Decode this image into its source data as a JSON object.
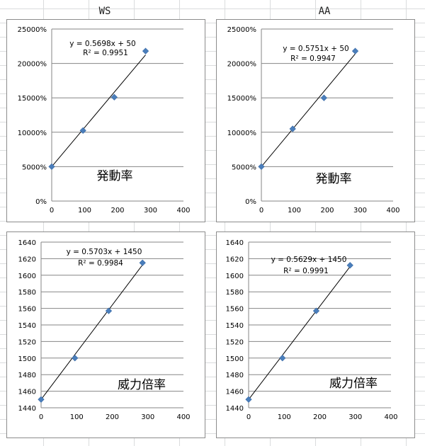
{
  "headers": {
    "left": "WS",
    "right": "AA"
  },
  "colors": {
    "marker": "#4a7ebb",
    "grid": "#868686",
    "line": "#000000"
  },
  "chart_data": [
    {
      "type": "scatter",
      "title": "",
      "annotation": "発動率",
      "equation": "y = 0.5698x + 50",
      "r2": "R² = 0.9951",
      "x": [
        0,
        95,
        190,
        285
      ],
      "y": [
        5000,
        10250,
        15100,
        21800
      ],
      "trend": {
        "slope": 56.98,
        "intercept": 5000
      },
      "xlim": [
        0,
        400
      ],
      "ylim": [
        0,
        25000
      ],
      "xticks": [
        0,
        100,
        200,
        300,
        400
      ],
      "yticks": [
        0,
        5000,
        10000,
        15000,
        20000,
        25000
      ],
      "ytick_labels": [
        "0%",
        "5000%",
        "10000%",
        "15000%",
        "20000%",
        "25000%"
      ],
      "grid": "horizontal",
      "legend": "none"
    },
    {
      "type": "scatter",
      "title": "",
      "annotation": "発動率",
      "equation": "y = 0.5751x + 50",
      "r2": "R² = 0.9947",
      "x": [
        0,
        95,
        190,
        285
      ],
      "y": [
        5000,
        10500,
        15000,
        21800
      ],
      "trend": {
        "slope": 57.51,
        "intercept": 5000
      },
      "xlim": [
        0,
        400
      ],
      "ylim": [
        0,
        25000
      ],
      "xticks": [
        0,
        100,
        200,
        300,
        400
      ],
      "yticks": [
        0,
        5000,
        10000,
        15000,
        20000,
        25000
      ],
      "ytick_labels": [
        "0%",
        "5000%",
        "10000%",
        "15000%",
        "20000%",
        "25000%"
      ],
      "grid": "horizontal",
      "legend": "none"
    },
    {
      "type": "scatter",
      "title": "",
      "annotation": "威力倍率",
      "equation": "y = 0.5703x + 1450",
      "r2": "R² = 0.9984",
      "x": [
        0,
        95,
        190,
        285
      ],
      "y": [
        1450,
        1500,
        1557,
        1615
      ],
      "trend": {
        "slope": 0.5703,
        "intercept": 1450
      },
      "xlim": [
        0,
        400
      ],
      "ylim": [
        1440,
        1640
      ],
      "xticks": [
        0,
        100,
        200,
        300,
        400
      ],
      "yticks": [
        1440,
        1460,
        1480,
        1500,
        1520,
        1540,
        1560,
        1580,
        1600,
        1620,
        1640
      ],
      "ytick_labels": [
        "1440",
        "1460",
        "1480",
        "1500",
        "1520",
        "1540",
        "1560",
        "1580",
        "1600",
        "1620",
        "1640"
      ],
      "grid": "horizontal",
      "legend": "none"
    },
    {
      "type": "scatter",
      "title": "",
      "annotation": "威力倍率",
      "equation": "y = 0.5629x + 1450",
      "r2": "R² = 0.9991",
      "x": [
        0,
        95,
        190,
        285
      ],
      "y": [
        1450,
        1500,
        1557,
        1612
      ],
      "trend": {
        "slope": 0.5629,
        "intercept": 1450
      },
      "xlim": [
        0,
        400
      ],
      "ylim": [
        1440,
        1640
      ],
      "xticks": [
        0,
        100,
        200,
        300,
        400
      ],
      "yticks": [
        1440,
        1460,
        1480,
        1500,
        1520,
        1540,
        1560,
        1580,
        1600,
        1620,
        1640
      ],
      "ytick_labels": [
        "1440",
        "1460",
        "1480",
        "1500",
        "1520",
        "1540",
        "1560",
        "1580",
        "1600",
        "1620",
        "1640"
      ],
      "grid": "horizontal",
      "legend": "none"
    }
  ]
}
